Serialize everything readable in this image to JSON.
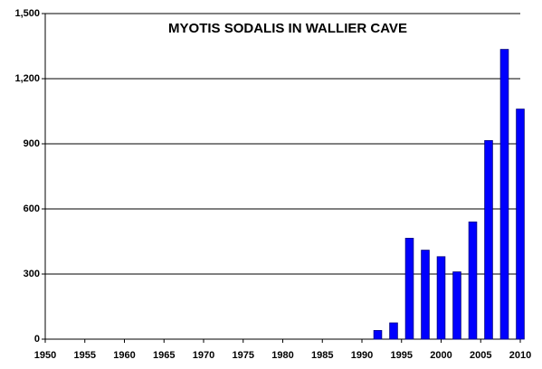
{
  "chart_data": {
    "type": "bar",
    "title": "MYOTIS SODALIS IN WALLIER CAVE",
    "x": [
      1992,
      1994,
      1996,
      1998,
      2000,
      2002,
      2004,
      2006,
      2008,
      2010
    ],
    "values": [
      40,
      75,
      465,
      410,
      380,
      310,
      540,
      915,
      1335,
      1060
    ],
    "color": "#0000ff",
    "xlim": [
      1950,
      2010
    ],
    "xticks": [
      1950,
      1955,
      1960,
      1965,
      1970,
      1975,
      1980,
      1985,
      1990,
      1995,
      2000,
      2005,
      2010
    ],
    "ylim": [
      0,
      1500
    ],
    "yticks": [
      0,
      300,
      600,
      900,
      {
        "value": 1200,
        "label": "1,200"
      },
      {
        "value": 1500,
        "label": "1,500"
      }
    ],
    "grid": true
  }
}
